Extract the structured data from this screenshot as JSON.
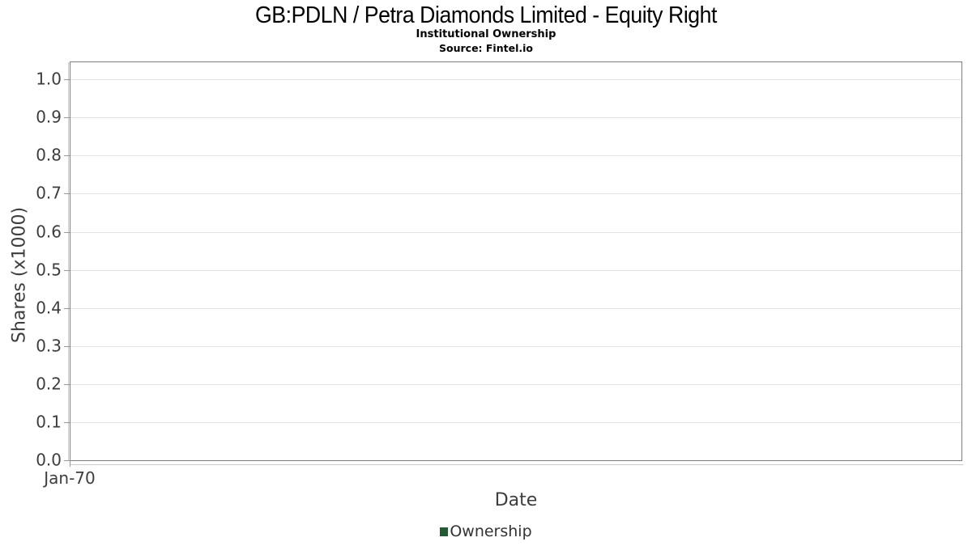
{
  "header": {
    "title": "GB:PDLN / Petra Diamonds Limited - Equity Right",
    "subtitle": "Institutional Ownership",
    "source": "Source: Fintel.io"
  },
  "chart_data": {
    "type": "line",
    "title": "GB:PDLN / Petra Diamonds Limited - Equity Right",
    "subtitle": "Institutional Ownership",
    "source": "Source: Fintel.io",
    "xlabel": "Date",
    "ylabel": "Shares (x1000)",
    "ylim": [
      0,
      1.045
    ],
    "grid": true,
    "yticks": [
      {
        "v": 0.0,
        "label": "0.0"
      },
      {
        "v": 0.1,
        "label": "0.1"
      },
      {
        "v": 0.2,
        "label": "0.2"
      },
      {
        "v": 0.3,
        "label": "0.3"
      },
      {
        "v": 0.4,
        "label": "0.4"
      },
      {
        "v": 0.5,
        "label": "0.5"
      },
      {
        "v": 0.6,
        "label": "0.6"
      },
      {
        "v": 0.7,
        "label": "0.7"
      },
      {
        "v": 0.8,
        "label": "0.8"
      },
      {
        "v": 0.9,
        "label": "0.9"
      },
      {
        "v": 1.0,
        "label": "1.0"
      }
    ],
    "xticks": [
      "Jan-70"
    ],
    "legend": {
      "position": "bottom-center",
      "entries": [
        {
          "label": "Ownership",
          "color": "#235a32"
        }
      ]
    },
    "series": [
      {
        "name": "Ownership",
        "color": "#235a32",
        "x": [],
        "values": []
      }
    ]
  },
  "colors": {
    "plot_border": "#7d7d7d",
    "gridline": "#e3e3e3",
    "axis_line": "#c9c9c9",
    "tick_mark": "#999999",
    "tick_text": "#3d3d3d",
    "legend_green": "#235a32",
    "background": "#ffffff"
  }
}
